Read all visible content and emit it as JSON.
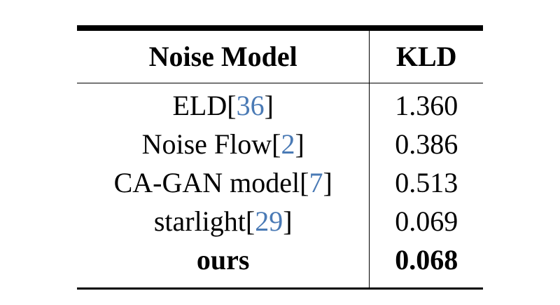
{
  "table": {
    "headers": {
      "model": "Noise Model",
      "kld": "KLD"
    },
    "rows": [
      {
        "model": "ELD",
        "open": "[",
        "cite": "36",
        "close": "]",
        "kld": "1.360"
      },
      {
        "model": "Noise Flow",
        "open": "[",
        "cite": "2",
        "close": "]",
        "kld": "0.386"
      },
      {
        "model": "CA-GAN model",
        "open": "[",
        "cite": "7",
        "close": "]",
        "kld": "0.513"
      },
      {
        "model": "starlight",
        "open": "[",
        "cite": "29",
        "close": "]",
        "kld": "0.069"
      },
      {
        "model": "ours",
        "kld": "0.068"
      }
    ]
  },
  "colors": {
    "citation": "#4a7ab5",
    "text": "#000000"
  }
}
